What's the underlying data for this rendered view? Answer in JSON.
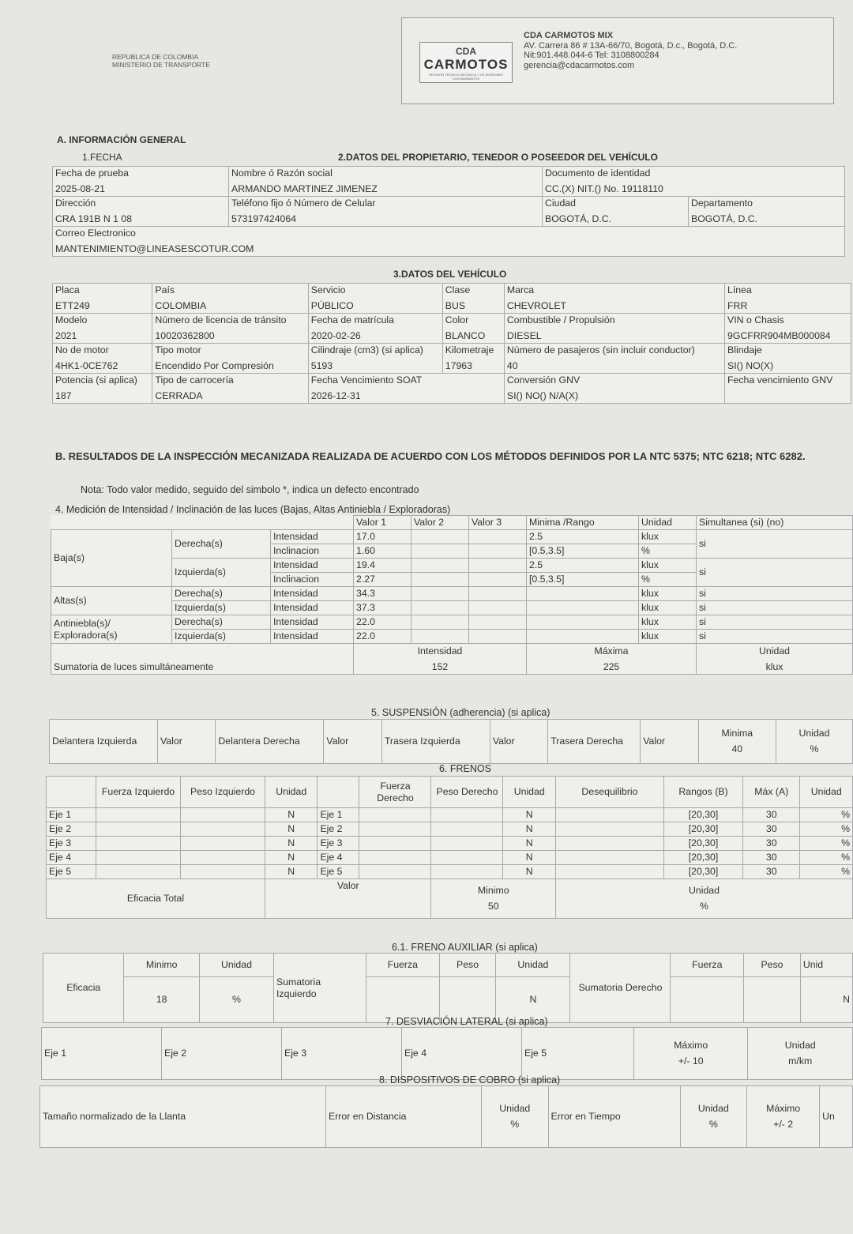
{
  "header": {
    "gov": [
      "REPUBLICA DE COLOMBIA",
      "MINISTERIO DE TRANSPORTE"
    ],
    "logo": {
      "top": "CDA",
      "main": "CARMOTOS",
      "tag": "REVISION TECNICO MECANICA Y DE EMISIONES CONTAMINANTES"
    },
    "company": "CDA CARMOTOS MIX",
    "address": "AV. Carrera 86 # 13A-66/70, Bogotá, D.c., Bogotá, D.C.",
    "nit": "Nit:901.448.044-6 Tel: 3108800284",
    "email": "gerencia@cdacarmotos.com"
  },
  "a": {
    "title": "A. INFORMACIÓN GENERAL",
    "fecha": "1.FECHA",
    "owner_title": "2.DATOS DEL PROPIETARIO, TENEDOR O POSEEDOR DEL VEHÍCULO",
    "fecha_label": "Fecha de prueba",
    "fecha_value": "2025-08-21",
    "nombre_label": "Nombre ó Razón social",
    "nombre_value": "ARMANDO MARTINEZ JIMENEZ",
    "doc_label": "Documento de identidad",
    "doc_value": "CC.(X) NIT.() No. 19118110",
    "dir_label": "Dirección",
    "dir_value": "CRA 191B N 1 08",
    "tel_label": "Teléfono fijo ó Número de Celular",
    "tel_value": "573197424064",
    "ciudad_label": "Ciudad",
    "ciudad_value": "BOGOTÁ, D.C.",
    "depto_label": "Departamento",
    "depto_value": "BOGOTÁ, D.C.",
    "correo_label": "Correo Electronico",
    "correo_value": "MANTENIMIENTO@LINEASESCOTUR.COM"
  },
  "vehicle": {
    "title": "3.DATOS DEL VEHÍCULO",
    "cells": [
      [
        "Placa",
        "ETT249"
      ],
      [
        "País",
        "COLOMBIA"
      ],
      [
        "Servicio",
        "PÚBLICO"
      ],
      [
        "Clase",
        "BUS"
      ],
      [
        "Marca",
        "CHEVROLET"
      ],
      [
        "Línea",
        "FRR"
      ],
      [
        "Modelo",
        "2021"
      ],
      [
        "Número de licencia de tránsito",
        "10020362800"
      ],
      [
        "Fecha de matrícula",
        "2020-02-26"
      ],
      [
        "Color",
        "BLANCO"
      ],
      [
        "Combustible / Propulsión",
        "DIESEL"
      ],
      [
        "VIN o Chasis",
        "9GCFRR904MB000084"
      ],
      [
        "No de motor",
        "4HK1-0CE762"
      ],
      [
        "Tipo motor",
        "Encendido Por Compresión"
      ],
      [
        "Cilindraje (cm3) (si aplica)",
        "5193"
      ],
      [
        "Kilometraje",
        "17963"
      ],
      [
        "Número de pasajeros (sin incluir conductor)",
        "40"
      ],
      [
        "Blindaje",
        "SI() NO(X)"
      ],
      [
        "Potencia (si aplica)",
        "187"
      ],
      [
        "Tipo de carrocería",
        "CERRADA"
      ],
      [
        "Fecha Vencimiento SOAT",
        "2026-12-31"
      ],
      [
        "Conversión GNV",
        "SI() NO() N/A(X)"
      ],
      [
        "Fecha vencimiento GNV",
        ""
      ]
    ]
  },
  "b": {
    "title": "B.   RESULTADOS DE LA INSPECCIÓN MECANIZADA REALIZADA DE ACUERDO CON LOS MÉTODOS DEFINIDOS POR LA NTC 5375; NTC 6218; NTC 6282.",
    "note": "Nota: Todo valor medido, seguido del simbolo *, indica un defecto encontrado"
  },
  "luces": {
    "title": "4. Medición de Intensidad / Inclinación de las luces (Bajas, Altas Antiniebla / Exploradoras)",
    "headers": [
      "Valor 1",
      "Valor 2",
      "Valor 3",
      "Minima /Rango",
      "Unidad",
      "Simultanea (si) (no)"
    ],
    "groups": [
      "Baja(s)",
      "Altas(s)",
      "Antiniebla(s)/ Exploradora(s)"
    ],
    "sides": [
      "Derecha(s)",
      "Izquierda(s)"
    ],
    "rows": [
      {
        "m": "Intensidad",
        "v1": "17.0",
        "r": "2.5",
        "u": "klux",
        "s": "si"
      },
      {
        "m": "Inclinacion",
        "v1": "1.60",
        "r": "[0.5,3.5]",
        "u": "%"
      },
      {
        "m": "Intensidad",
        "v1": "19.4",
        "r": "2.5",
        "u": "klux",
        "s": "si"
      },
      {
        "m": "Inclinacion",
        "v1": "2.27",
        "r": "[0.5,3.5]",
        "u": "%"
      },
      {
        "m": "Intensidad",
        "v1": "34.3",
        "r": "",
        "u": "klux",
        "s": "si"
      },
      {
        "m": "Intensidad",
        "v1": "37.3",
        "r": "",
        "u": "klux",
        "s": "si"
      },
      {
        "m": "Intensidad",
        "v1": "22.0",
        "r": "",
        "u": "klux",
        "s": "si"
      },
      {
        "m": "Intensidad",
        "v1": "22.0",
        "r": "",
        "u": "klux",
        "s": "si"
      }
    ],
    "sum_label": "Sumatoria de luces simultáneamente",
    "sum_int_label": "Intensidad",
    "sum_int": "152",
    "max_label": "Máxima",
    "max": "225",
    "unit_label": "Unidad",
    "unit": "klux"
  },
  "susp": {
    "title": "5. SUSPENSIÓN (adherencia) (si aplica)",
    "cols": [
      "Delantera Izquierda",
      "Valor",
      "Delantera Derecha",
      "Valor",
      "Trasera Izquierda",
      "Valor",
      "Trasera Derecha",
      "Valor"
    ],
    "min_label": "Minima",
    "min": "40",
    "unit_label": "Unidad",
    "unit": "%"
  },
  "frenos": {
    "title": "6. FRENOS",
    "headers": [
      "Fuerza Izquierdo",
      "Peso Izquierdo",
      "Unidad",
      "Fuerza Derecho",
      "Peso Derecho",
      "Unidad",
      "Desequilibrio",
      "Rangos (B)",
      "Máx (A)",
      "Unidad"
    ],
    "ejes": [
      "Eje 1",
      "Eje 2",
      "Eje 3",
      "Eje 4",
      "Eje 5"
    ],
    "unit": "N",
    "range": "[20,30]",
    "max": "30",
    "pct": "%",
    "eficacia_label": "Eficacia Total",
    "valor_label": "Valor",
    "min_label": "Minimo",
    "min": "50",
    "unit_label": "Unidad",
    "unit2": "%"
  },
  "aux": {
    "title": "6.1. FRENO AUXILIAR (si aplica)",
    "eficacia": "Eficacia",
    "min_label": "Minimo",
    "min": "18",
    "unit_label": "Unidad",
    "unit": "%",
    "sum_izq": "Sumatoria Izquierdo",
    "sum_der": "Sumatoria Derecho",
    "fuerza": "Fuerza",
    "peso": "Peso",
    "n": "N",
    "unid_cut": "Unid"
  },
  "desv": {
    "title": "7. DESVIACIÓN LATERAL (si aplica)",
    "ejes": [
      "Eje 1",
      "Eje 2",
      "Eje 3",
      "Eje 4",
      "Eje 5"
    ],
    "max_label": "Máximo",
    "max": "+/- 10",
    "unit_label": "Unidad",
    "unit": "m/km"
  },
  "cobro": {
    "title": "8. DISPOSITIVOS DE COBRO (si aplica)",
    "llanta": "Tamaño normalizado de la Llanta",
    "err_dist": "Error en Distancia",
    "err_tiempo": "Error en Tiempo",
    "unit_label": "Unidad",
    "unit": "%",
    "max_label": "Máximo",
    "max": "+/- 2",
    "un_cut": "Un"
  }
}
